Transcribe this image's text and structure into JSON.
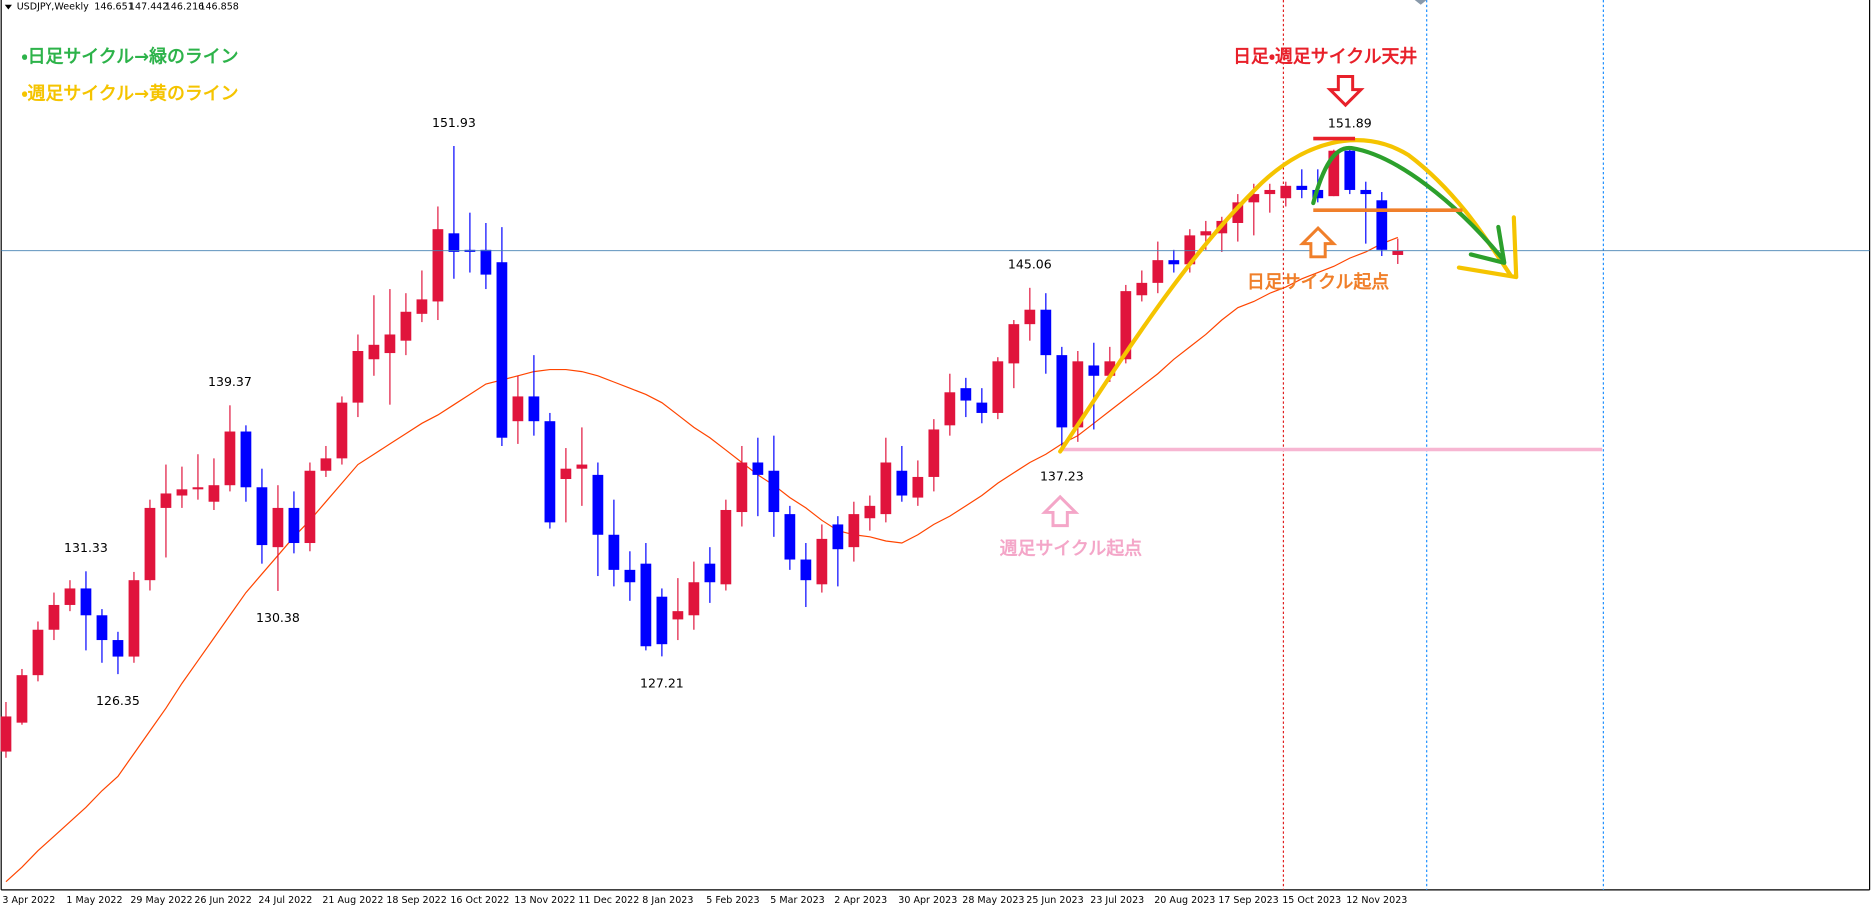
{
  "chart_data": {
    "type": "candlestick",
    "symbol": "USDJPY,Weekly",
    "categories": [
      "3 Apr 2022",
      null,
      null,
      null,
      "1 May 2022",
      null,
      null,
      null,
      "29 May 2022",
      null,
      null,
      null,
      "26 Jun 2022",
      null,
      null,
      null,
      "24 Jul 2022",
      null,
      null,
      null,
      "21 Aug 2022",
      null,
      null,
      null,
      "18 Sep 2022",
      null,
      null,
      null,
      "16 Oct 2022",
      null,
      null,
      null,
      "13 Nov 2022",
      null,
      null,
      null,
      "11 Dec 2022",
      null,
      null,
      null,
      "8 Jan 2023",
      null,
      null,
      null,
      "5 Feb 2023",
      null,
      null,
      null,
      "5 Mar 2023",
      null,
      null,
      null,
      "2 Apr 2023",
      null,
      null,
      null,
      "30 Apr 2023",
      null,
      null,
      null,
      "28 May 2023",
      null,
      null,
      null,
      "25 Jun 2023",
      null,
      null,
      null,
      "23 Jul 2023",
      null,
      null,
      null,
      "20 Aug 2023",
      null,
      null,
      null,
      "17 Sep 2023",
      null,
      null,
      null,
      "15 Oct 2023",
      null,
      null,
      null,
      "12 Nov 2023",
      null,
      null,
      null
    ],
    "open": [
      122.6,
      124.0,
      126.3,
      128.5,
      129.7,
      130.5,
      129.2,
      128.0,
      127.2,
      130.9,
      134.4,
      135.0,
      135.3,
      134.7,
      135.5,
      138.1,
      135.4,
      132.5,
      134.4,
      132.7,
      136.2,
      136.8,
      139.5,
      141.6,
      141.9,
      142.5,
      143.8,
      144.4,
      147.7,
      146.9,
      146.9,
      146.3,
      138.6,
      139.8,
      138.6,
      135.8,
      136.3,
      136.0,
      133.1,
      131.4,
      131.7,
      130.1,
      129.0,
      129.2,
      131.7,
      130.7,
      134.2,
      136.6,
      136.2,
      134.1,
      131.9,
      130.7,
      133.6,
      132.5,
      133.9,
      134.1,
      136.2,
      134.9,
      135.9,
      138.4,
      140.2,
      139.5,
      139.0,
      141.4,
      143.3,
      144.0,
      141.8,
      138.3,
      141.3,
      140.8,
      141.6,
      144.7,
      145.3,
      146.4,
      146.2,
      147.6,
      147.7,
      148.2,
      149.2,
      149.6,
      149.4,
      150.0,
      149.8,
      149.5,
      151.7,
      149.8,
      149.3,
      146.651
    ],
    "high": [
      125.0,
      126.6,
      128.9,
      130.3,
      130.9,
      131.33,
      129.5,
      128.4,
      131.3,
      134.8,
      136.5,
      136.4,
      137.0,
      136.8,
      139.37,
      138.4,
      136.3,
      135.5,
      135.2,
      136.6,
      137.4,
      139.8,
      142.8,
      144.7,
      145.0,
      144.8,
      145.9,
      149.0,
      151.93,
      148.7,
      148.2,
      148.0,
      140.8,
      141.8,
      139.0,
      137.3,
      138.3,
      136.6,
      134.8,
      132.3,
      132.7,
      130.5,
      131.0,
      131.8,
      132.5,
      134.8,
      137.4,
      137.8,
      137.9,
      134.5,
      132.7,
      133.6,
      134.0,
      134.7,
      135.0,
      137.8,
      137.4,
      136.7,
      138.7,
      140.9,
      140.7,
      140.2,
      141.7,
      143.5,
      145.06,
      144.8,
      142.2,
      142.0,
      142.4,
      142.2,
      145.2,
      145.9,
      147.3,
      146.9,
      147.9,
      148.3,
      148.5,
      149.6,
      150.1,
      150.1,
      150.2,
      150.8,
      150.8,
      151.75,
      151.89,
      150.2,
      149.7,
      147.442
    ],
    "low": [
      122.3,
      123.9,
      126.0,
      128.0,
      129.4,
      127.5,
      126.9,
      126.35,
      126.9,
      130.4,
      132.0,
      134.4,
      134.8,
      134.3,
      135.2,
      134.7,
      131.7,
      130.38,
      132.2,
      132.3,
      135.9,
      136.5,
      138.8,
      140.8,
      139.4,
      141.8,
      143.4,
      143.5,
      145.5,
      145.8,
      145.0,
      137.4,
      137.5,
      137.9,
      133.4,
      133.7,
      134.5,
      131.1,
      130.6,
      129.9,
      127.5,
      127.21,
      128.0,
      128.5,
      129.8,
      130.4,
      133.5,
      134.0,
      133.0,
      131.4,
      129.6,
      130.3,
      130.6,
      131.8,
      133.3,
      133.7,
      134.7,
      134.5,
      135.2,
      137.9,
      138.8,
      138.5,
      138.7,
      140.2,
      142.5,
      140.9,
      137.23,
      137.6,
      138.2,
      140.5,
      141.4,
      144.4,
      144.8,
      145.8,
      145.8,
      146.9,
      146.8,
      147.3,
      147.6,
      148.7,
      149.0,
      149.4,
      149.2,
      149.5,
      149.6,
      147.2,
      146.6,
      146.216
    ],
    "close": [
      124.3,
      126.3,
      128.5,
      129.7,
      130.5,
      129.2,
      128.0,
      127.2,
      130.9,
      134.4,
      135.1,
      135.3,
      135.4,
      135.5,
      138.1,
      135.4,
      132.6,
      134.4,
      132.7,
      136.2,
      136.8,
      139.5,
      142.0,
      142.3,
      142.8,
      143.9,
      144.5,
      147.9,
      146.8,
      146.8,
      145.7,
      137.8,
      139.8,
      138.6,
      133.7,
      136.3,
      136.5,
      133.1,
      131.4,
      130.8,
      127.7,
      127.8,
      129.4,
      130.8,
      130.8,
      134.3,
      136.6,
      136.0,
      134.2,
      131.9,
      130.9,
      132.9,
      132.4,
      134.1,
      134.5,
      136.6,
      135.0,
      135.9,
      138.2,
      140.0,
      139.6,
      139.0,
      141.5,
      143.3,
      144.0,
      141.8,
      138.3,
      141.5,
      140.8,
      141.5,
      144.9,
      145.3,
      146.4,
      146.2,
      147.6,
      147.8,
      148.3,
      149.2,
      149.6,
      149.8,
      150.0,
      149.8,
      149.4,
      151.7,
      149.8,
      149.6,
      146.9,
      146.858
    ],
    "up_color": "#e0143c",
    "down_color": "#0000ff",
    "ma": {
      "color": "#ff4500",
      "values": [
        116.3,
        117.0,
        117.8,
        118.5,
        119.2,
        119.9,
        120.7,
        121.4,
        122.5,
        123.6,
        124.7,
        125.9,
        127.0,
        128.1,
        129.2,
        130.3,
        131.2,
        132.1,
        133.0,
        133.8,
        134.7,
        135.6,
        136.5,
        137.0,
        137.5,
        138.0,
        138.5,
        138.9,
        139.4,
        139.9,
        140.4,
        140.6,
        140.8,
        141.0,
        141.1,
        141.1,
        141.0,
        140.8,
        140.5,
        140.2,
        139.9,
        139.5,
        138.9,
        138.3,
        137.8,
        137.2,
        136.6,
        136.0,
        135.5,
        134.9,
        134.4,
        133.8,
        133.3,
        133.1,
        133.0,
        132.8,
        132.7,
        133.1,
        133.6,
        134.0,
        134.5,
        135.0,
        135.6,
        136.1,
        136.6,
        137.0,
        137.5,
        137.9,
        138.5,
        139.1,
        139.7,
        140.3,
        140.9,
        141.6,
        142.2,
        142.8,
        143.5,
        144.1,
        144.4,
        144.8,
        145.1,
        145.5,
        145.8,
        146.1,
        146.5,
        146.8,
        147.2,
        147.5
      ]
    },
    "ylim": [
      115.9,
      159.0
    ],
    "labeled_highs": [
      5,
      14,
      28,
      64,
      84
    ],
    "labeled_lows": [
      7,
      17,
      41,
      66
    ],
    "annotations": {
      "green_note": "・日足サイクル→緑のライン",
      "yellow_note": "・週足サイクル→黄のライン",
      "top_note": "日足・週足サイクル天井",
      "daily_start_note": "日足サイクル起点",
      "weekly_start_note": "週足サイクル起点"
    }
  }
}
